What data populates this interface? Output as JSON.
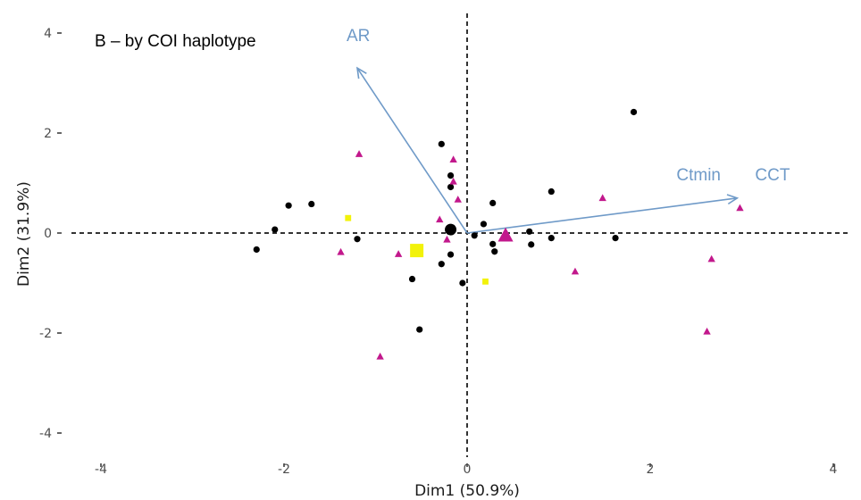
{
  "chart_data": {
    "type": "scatter",
    "title": "B – by COI haplotype",
    "xlabel": "Dim1 (50.9%)",
    "ylabel": "Dim2 (31.9%)",
    "xlim": [
      -4.2,
      4.2
    ],
    "ylim": [
      -4.4,
      4.4
    ],
    "xticks": [
      -4,
      -2,
      0,
      2,
      4
    ],
    "yticks": [
      -4,
      -2,
      0,
      2,
      4
    ],
    "xtick_labels": [
      "-4",
      "-2",
      "0",
      "2",
      "4"
    ],
    "ytick_labels": [
      "-4",
      "-2",
      "0",
      "2",
      "4"
    ],
    "grid": false,
    "reference_lines": {
      "x": 0,
      "y": 0,
      "style": "dashed"
    },
    "colors": {
      "vector": "#6f9ac8",
      "group1": "#000000",
      "group2": "#c2188c",
      "group3": "#f2f20a",
      "axis": "#333333"
    },
    "series": [
      {
        "marker": "circle",
        "color": "#000000",
        "points": [
          [
            -2.3,
            -0.33
          ],
          [
            -2.1,
            0.07
          ],
          [
            -1.95,
            0.55
          ],
          [
            -1.7,
            0.58
          ],
          [
            -1.2,
            -0.12
          ],
          [
            -0.6,
            -0.92
          ],
          [
            -0.52,
            -1.93
          ],
          [
            -0.58,
            -0.38
          ],
          [
            -0.28,
            1.78
          ],
          [
            -0.18,
            1.15
          ],
          [
            -0.18,
            0.92
          ],
          [
            -0.28,
            -0.62
          ],
          [
            -0.18,
            -0.43
          ],
          [
            -0.05,
            -1.0
          ],
          [
            0.08,
            -0.05
          ],
          [
            0.18,
            0.18
          ],
          [
            0.28,
            0.6
          ],
          [
            0.28,
            -0.22
          ],
          [
            0.3,
            -0.37
          ],
          [
            0.68,
            0.03
          ],
          [
            0.7,
            -0.23
          ],
          [
            0.92,
            0.83
          ],
          [
            0.92,
            -0.1
          ],
          [
            1.62,
            -0.1
          ],
          [
            1.82,
            2.42
          ]
        ],
        "centroid": [
          -0.18,
          0.07
        ]
      },
      {
        "marker": "triangle",
        "color": "#c2188c",
        "points": [
          [
            -1.18,
            1.58
          ],
          [
            -1.38,
            -0.38
          ],
          [
            -0.95,
            -2.47
          ],
          [
            -0.75,
            -0.42
          ],
          [
            -0.3,
            0.27
          ],
          [
            -0.22,
            -0.13
          ],
          [
            -0.15,
            1.47
          ],
          [
            -0.15,
            1.03
          ],
          [
            -0.1,
            0.67
          ],
          [
            1.18,
            -0.77
          ],
          [
            1.48,
            0.7
          ],
          [
            2.62,
            -1.97
          ],
          [
            2.67,
            -0.52
          ],
          [
            2.98,
            0.5
          ]
        ],
        "centroid": [
          0.42,
          -0.05
        ]
      },
      {
        "marker": "square",
        "color": "#f2f20a",
        "points": [
          [
            -1.3,
            0.3
          ],
          [
            0.2,
            -0.97
          ]
        ],
        "centroid": [
          -0.55,
          -0.35
        ]
      }
    ],
    "vectors": [
      {
        "label": "AR",
        "x": -1.2,
        "y": 3.3
      },
      {
        "label": "Ctmin",
        "x": 2.95,
        "y": 0.7
      },
      {
        "label": "CCT",
        "x": 2.95,
        "y": 0.7
      }
    ]
  }
}
